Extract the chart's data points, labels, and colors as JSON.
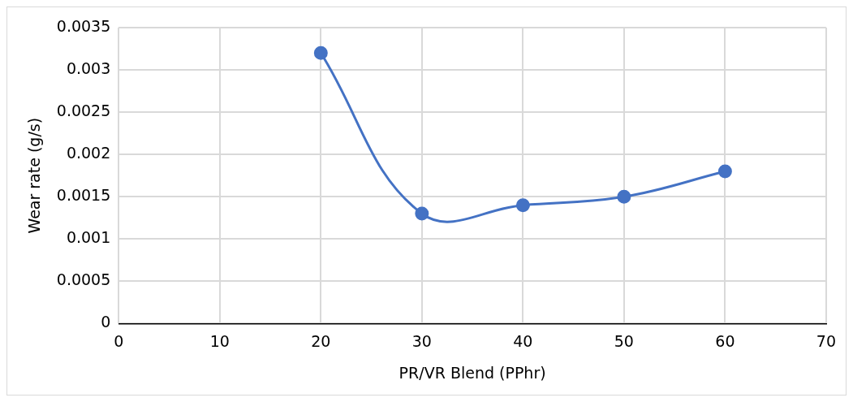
{
  "chart_data": {
    "type": "line",
    "xlabel": "PR/VR Blend (PPhr)",
    "ylabel": "Wear rate (g/s)",
    "x": [
      20,
      30,
      40,
      50,
      60
    ],
    "series": [
      {
        "color": "#4472c4",
        "values": [
          0.0032,
          0.0013,
          0.0014,
          0.0015,
          0.0018
        ]
      }
    ],
    "xlim": [
      0,
      70
    ],
    "xticks": [
      0,
      10,
      20,
      30,
      40,
      50,
      60,
      70
    ],
    "ylim": [
      0,
      0.0035
    ],
    "yticks": [
      0,
      0.0005,
      0.001,
      0.0015,
      0.002,
      0.0025,
      0.003,
      0.0035
    ],
    "grid": true,
    "marker": "circle",
    "line_style": "solid",
    "legend": false
  }
}
